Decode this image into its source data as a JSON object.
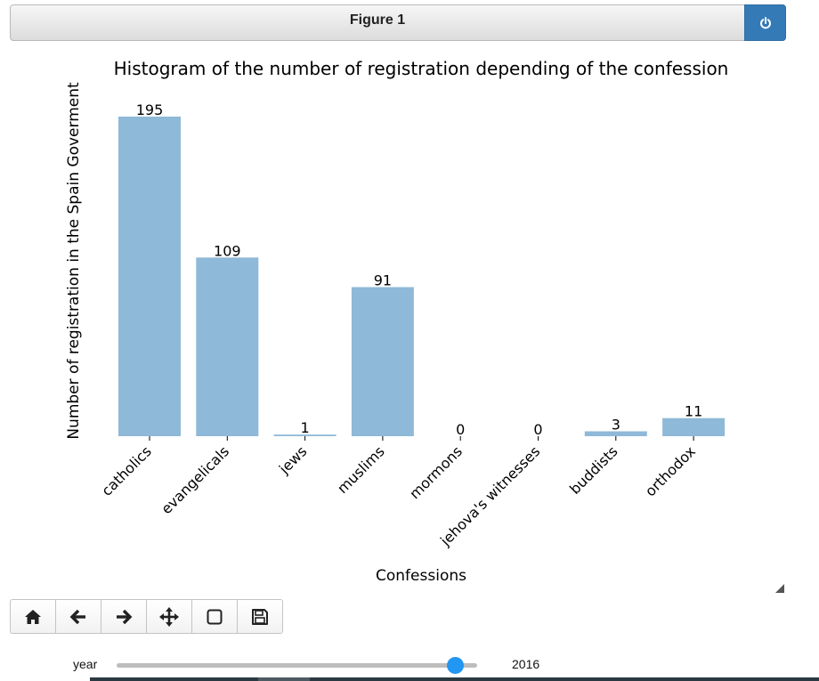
{
  "window": {
    "title": "Figure 1",
    "power_icon": "power-icon"
  },
  "chart_data": {
    "type": "bar",
    "title": "Histogram of the number of registration depending of the confession",
    "xlabel": "Confessions",
    "ylabel": "Number of registration in the Spain Goverment",
    "categories": [
      "catholics",
      "evangelicals",
      "jews",
      "muslims",
      "mormons",
      "jehova's witnesses",
      "buddists",
      "orthodox"
    ],
    "values": [
      195,
      109,
      1,
      91,
      0,
      0,
      3,
      11
    ],
    "data_labels": [
      "195",
      "109",
      "1",
      "91",
      "0",
      "0",
      "3",
      "11"
    ],
    "ylim": [
      0,
      195
    ],
    "bar_color": "#8fb9d8",
    "show_y_ticks": false,
    "grid": false
  },
  "toolbar": {
    "buttons": [
      {
        "name": "home-button",
        "icon": "home-icon"
      },
      {
        "name": "back-button",
        "icon": "arrow-left-icon"
      },
      {
        "name": "forward-button",
        "icon": "arrow-right-icon"
      },
      {
        "name": "pan-button",
        "icon": "move-icon"
      },
      {
        "name": "zoom-button",
        "icon": "square-icon"
      },
      {
        "name": "save-button",
        "icon": "floppy-disk-icon"
      }
    ]
  },
  "slider": {
    "label": "year",
    "value": "2016",
    "fraction": 0.94,
    "accent": "#2196f3"
  }
}
